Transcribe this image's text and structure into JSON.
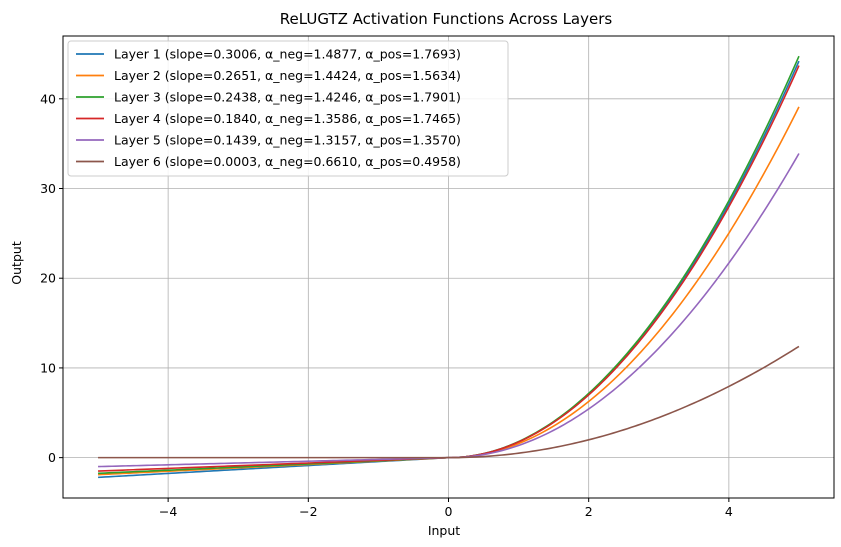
{
  "chart_data": {
    "type": "line",
    "title": "ReLUGTZ Activation Functions Across Layers",
    "xlabel": "Input",
    "ylabel": "Output",
    "xlim": [
      -5.5,
      5.5
    ],
    "ylim": [
      -4.5,
      47
    ],
    "x_ticks": [
      -4,
      -2,
      0,
      2,
      4
    ],
    "y_ticks": [
      0,
      10,
      20,
      30,
      40
    ],
    "x_tick_labels": [
      "−4",
      "−2",
      "0",
      "2",
      "4"
    ],
    "y_tick_labels": [
      "0",
      "10",
      "20",
      "30",
      "40"
    ],
    "grid": true,
    "legend_position": "upper-left",
    "x_domain": [
      -5,
      5
    ],
    "series": [
      {
        "name": "Layer 1 (slope=0.3006, α_neg=1.4877, α_pos=1.7693)",
        "color": "#1f77b4",
        "slope": 0.3006,
        "alpha_neg": 1.4877,
        "alpha_pos": 1.7693,
        "y_at_xmin": -2.2,
        "y_at_xmax": 44.2
      },
      {
        "name": "Layer 2 (slope=0.2651, α_neg=1.4424, α_pos=1.5634)",
        "color": "#ff7f0e",
        "slope": 0.2651,
        "alpha_neg": 1.4424,
        "alpha_pos": 1.5634,
        "y_at_xmin": -1.9,
        "y_at_xmax": 39.1
      },
      {
        "name": "Layer 3 (slope=0.2438, α_neg=1.4246, α_pos=1.7901)",
        "color": "#2ca02c",
        "slope": 0.2438,
        "alpha_neg": 1.4246,
        "alpha_pos": 1.7901,
        "y_at_xmin": -1.75,
        "y_at_xmax": 44.75
      },
      {
        "name": "Layer 4 (slope=0.1840, α_neg=1.3586, α_pos=1.7465)",
        "color": "#d62728",
        "slope": 0.184,
        "alpha_neg": 1.3586,
        "alpha_pos": 1.7465,
        "y_at_xmin": -1.5,
        "y_at_xmax": 43.7
      },
      {
        "name": "Layer 5 (slope=0.1439, α_neg=1.3157, α_pos=1.3570)",
        "color": "#9467bd",
        "slope": 0.1439,
        "alpha_neg": 1.3157,
        "alpha_pos": 1.357,
        "y_at_xmin": -1.0,
        "y_at_xmax": 33.9
      },
      {
        "name": "Layer 6 (slope=0.0003, α_neg=0.6610, α_pos=0.4958)",
        "color": "#8c564b",
        "slope": 0.0003,
        "alpha_neg": 0.661,
        "alpha_pos": 0.4958,
        "y_at_xmin": 0.0,
        "y_at_xmax": 12.4
      }
    ]
  }
}
